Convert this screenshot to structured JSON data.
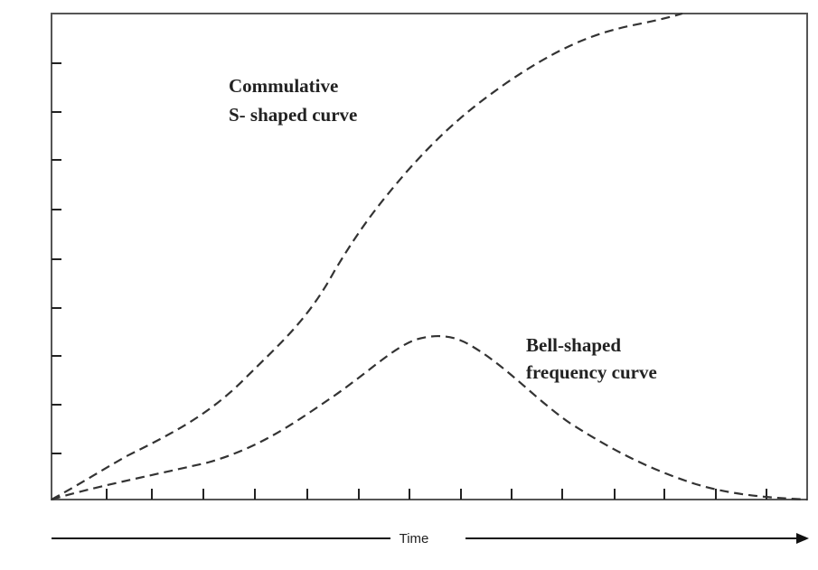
{
  "annotations": {
    "cumulative": {
      "line1": "Commulative",
      "line2": "S- shaped curve"
    },
    "bell": {
      "line1": "Bell-shaped",
      "line2": "frequency curve"
    }
  },
  "axis_label": "Time"
}
